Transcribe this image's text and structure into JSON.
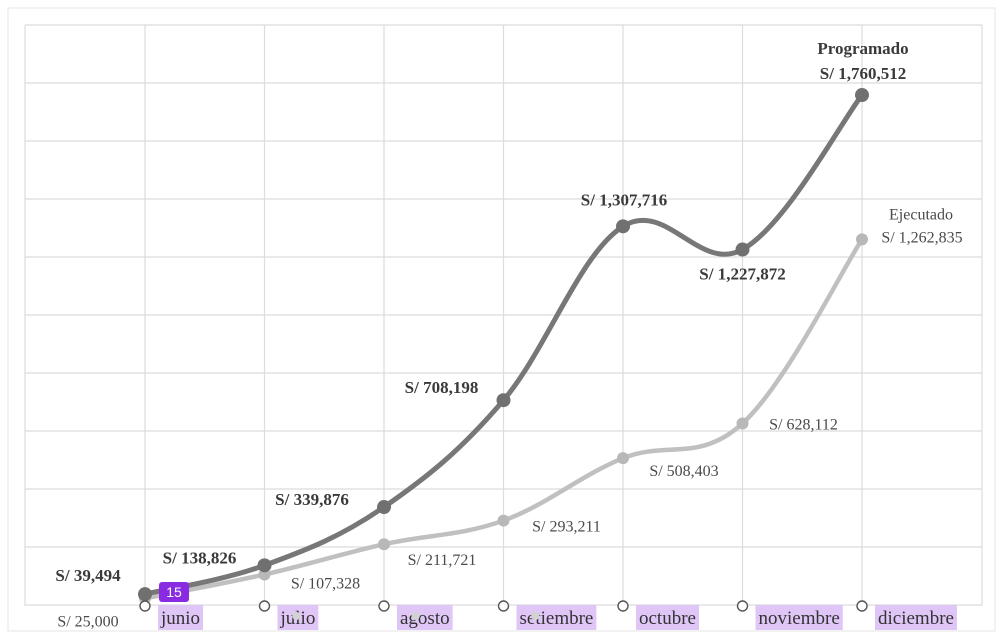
{
  "chart_data": {
    "type": "line",
    "categories": [
      "junio",
      "julio",
      "agosto",
      "setiembre",
      "octubre",
      "noviembre",
      "diciembre"
    ],
    "series": [
      {
        "name": "Programado",
        "color": "#777777",
        "values": [
          39494,
          138826,
          339876,
          708198,
          1307716,
          1227872,
          1760512
        ],
        "labels": [
          "S/ 39,494",
          "S/ 138,826",
          "S/ 339,876",
          "S/ 708,198",
          "S/ 1,307,716",
          "S/ 1,227,872",
          "S/ 1,760,512"
        ]
      },
      {
        "name": "Ejecutado",
        "color": "#c0c0c0",
        "values": [
          25000,
          107328,
          211721,
          293211,
          508403,
          628112,
          1262835
        ],
        "labels": [
          "S/ 25,000",
          "S/ 107,328",
          "S/ 211,721",
          "S/ 293,211",
          "S/ 508,403",
          "S/ 628,112",
          "S/ 1,262,835"
        ]
      }
    ],
    "grid": true,
    "legend": "none",
    "smooth": true,
    "badge": "15"
  }
}
